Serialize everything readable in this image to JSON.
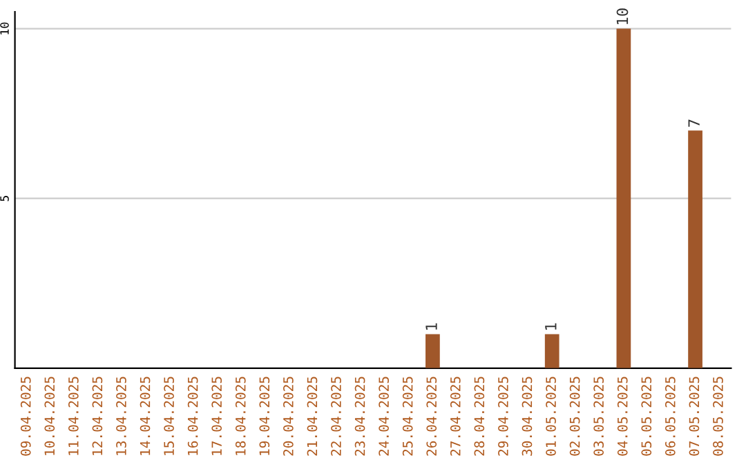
{
  "chart_data": {
    "type": "bar",
    "categories": [
      "09.04.2025",
      "10.04.2025",
      "11.04.2025",
      "12.04.2025",
      "13.04.2025",
      "14.04.2025",
      "15.04.2025",
      "16.04.2025",
      "17.04.2025",
      "18.04.2025",
      "19.04.2025",
      "20.04.2025",
      "21.04.2025",
      "22.04.2025",
      "23.04.2025",
      "24.04.2025",
      "25.04.2025",
      "26.04.2025",
      "27.04.2025",
      "28.04.2025",
      "29.04.2025",
      "30.04.2025",
      "01.05.2025",
      "02.05.2025",
      "03.05.2025",
      "04.05.2025",
      "05.05.2025",
      "06.05.2025",
      "07.05.2025",
      "08.05.2025"
    ],
    "values": [
      0,
      0,
      0,
      0,
      0,
      0,
      0,
      0,
      0,
      0,
      0,
      0,
      0,
      0,
      0,
      0,
      0,
      1,
      0,
      0,
      0,
      0,
      1,
      0,
      0,
      10,
      0,
      0,
      7,
      0
    ],
    "value_labels": [
      null,
      null,
      null,
      null,
      null,
      null,
      null,
      null,
      null,
      null,
      null,
      null,
      null,
      null,
      null,
      null,
      null,
      "1",
      null,
      null,
      null,
      null,
      "1",
      null,
      null,
      "10",
      null,
      null,
      "7",
      null
    ],
    "color": "#a0572a",
    "ylim": [
      0,
      10.5
    ],
    "yticks": [
      5,
      10
    ],
    "grid": "y"
  }
}
